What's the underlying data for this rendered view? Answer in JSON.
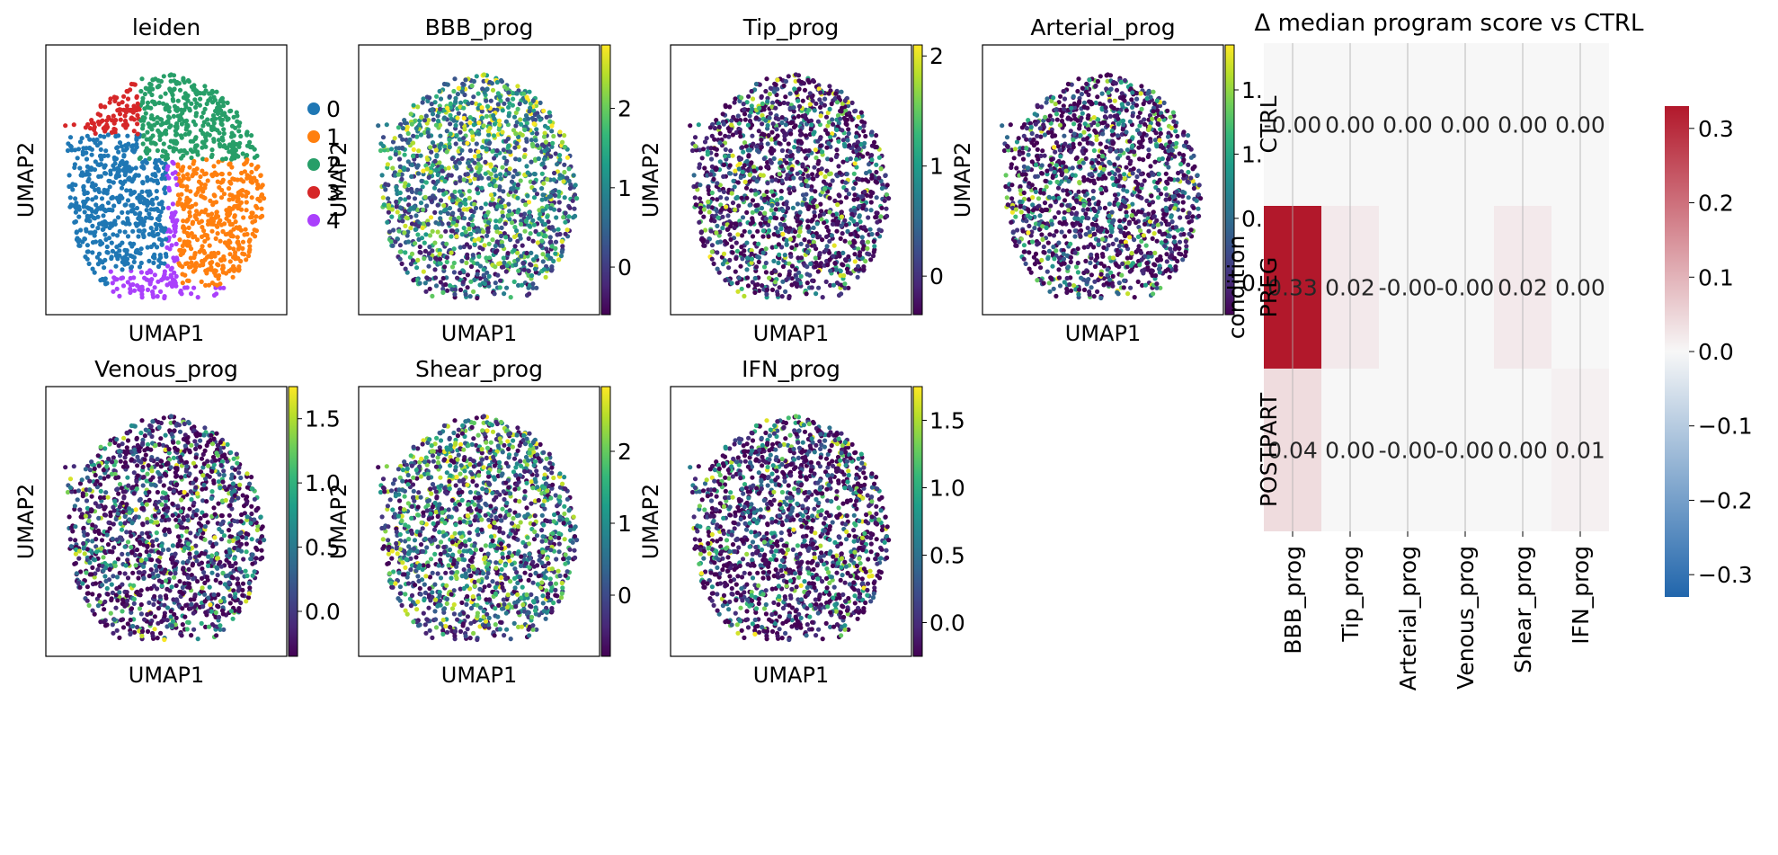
{
  "colors": {
    "viridis": [
      "#440154",
      "#482878",
      "#3e4989",
      "#31688e",
      "#26828e",
      "#1f9e89",
      "#35b779",
      "#6ece58",
      "#b5de2b",
      "#fde725"
    ],
    "leiden": [
      "#1f77b4",
      "#ff7f0e",
      "#279e68",
      "#d62728",
      "#aa40fc"
    ],
    "diverging_neg": "#2166ac",
    "diverging_mid": "#f7f7f7",
    "diverging_pos": "#b2182b"
  },
  "chart_data": [
    {
      "type": "scatter",
      "title": "leiden",
      "xlabel": "UMAP1",
      "ylabel": "UMAP2",
      "color_by": "categorical",
      "legend": {
        "placement": "right",
        "entries": [
          "0",
          "1",
          "2",
          "3",
          "4"
        ]
      }
    },
    {
      "type": "scatter",
      "title": "BBB_prog",
      "xlabel": "UMAP1",
      "ylabel": "UMAP2",
      "color_by": "continuous",
      "colorbar": {
        "range": [
          -0.6,
          2.8
        ],
        "ticks": [
          0,
          1,
          2
        ],
        "tick_labels": [
          "0",
          "1",
          "2"
        ]
      }
    },
    {
      "type": "scatter",
      "title": "Tip_prog",
      "xlabel": "UMAP1",
      "ylabel": "UMAP2",
      "color_by": "continuous",
      "colorbar": {
        "range": [
          -0.35,
          2.1
        ],
        "ticks": [
          0,
          1,
          2
        ],
        "tick_labels": [
          "0",
          "1",
          "2"
        ]
      }
    },
    {
      "type": "scatter",
      "title": "Arterial_prog",
      "xlabel": "UMAP1",
      "ylabel": "UMAP2",
      "color_by": "continuous",
      "colorbar": {
        "range": [
          -0.25,
          1.85
        ],
        "ticks": [
          0.0,
          0.5,
          1.0,
          1.5
        ],
        "tick_labels": [
          "0.0",
          "0.5",
          "1.0",
          "1.5"
        ]
      }
    },
    {
      "type": "scatter",
      "title": "Venous_prog",
      "xlabel": "UMAP1",
      "ylabel": "UMAP2",
      "color_by": "continuous",
      "colorbar": {
        "range": [
          -0.35,
          1.75
        ],
        "ticks": [
          0.0,
          0.5,
          1.0,
          1.5
        ],
        "tick_labels": [
          "0.0",
          "0.5",
          "1.0",
          "1.5"
        ]
      }
    },
    {
      "type": "scatter",
      "title": "Shear_prog",
      "xlabel": "UMAP1",
      "ylabel": "UMAP2",
      "color_by": "continuous",
      "colorbar": {
        "range": [
          -0.85,
          2.9
        ],
        "ticks": [
          0,
          1,
          2
        ],
        "tick_labels": [
          "0",
          "1",
          "2"
        ]
      }
    },
    {
      "type": "scatter",
      "title": "IFN_prog",
      "xlabel": "UMAP1",
      "ylabel": "UMAP2",
      "color_by": "continuous",
      "colorbar": {
        "range": [
          -0.25,
          1.75
        ],
        "ticks": [
          0.0,
          0.5,
          1.0,
          1.5
        ],
        "tick_labels": [
          "0.0",
          "0.5",
          "1.0",
          "1.5"
        ]
      }
    },
    {
      "type": "heatmap",
      "title": "Δ median program score vs CTRL",
      "ylabel": "condition",
      "rows": [
        "CTRL",
        "PREG",
        "POSTPART"
      ],
      "columns": [
        "BBB_prog",
        "Tip_prog",
        "Arterial_prog",
        "Venous_prog",
        "Shear_prog",
        "IFN_prog"
      ],
      "values": [
        [
          0.0,
          0.0,
          0.0,
          0.0,
          0.0,
          0.0
        ],
        [
          0.33,
          0.02,
          0.0,
          0.0,
          0.02,
          0.0
        ],
        [
          0.04,
          0.0,
          0.0,
          0.0,
          0.0,
          0.01
        ]
      ],
      "cell_labels": [
        [
          "-0.00",
          "0.00",
          "0.00",
          "0.00",
          "0.00",
          "0.00"
        ],
        [
          "0.33",
          "0.02",
          "-0.00",
          "-0.00",
          "0.02",
          "0.00"
        ],
        [
          "0.04",
          "0.00",
          "-0.00",
          "-0.00",
          "0.00",
          "0.01"
        ]
      ],
      "colorbar": {
        "range": [
          -0.33,
          0.33
        ],
        "ticks": [
          0.3,
          0.2,
          0.1,
          0.0,
          -0.1,
          -0.2,
          -0.3
        ],
        "tick_labels": [
          "0.3",
          "0.2",
          "0.1",
          "0.0",
          "−0.1",
          "−0.2",
          "−0.3"
        ]
      }
    }
  ]
}
